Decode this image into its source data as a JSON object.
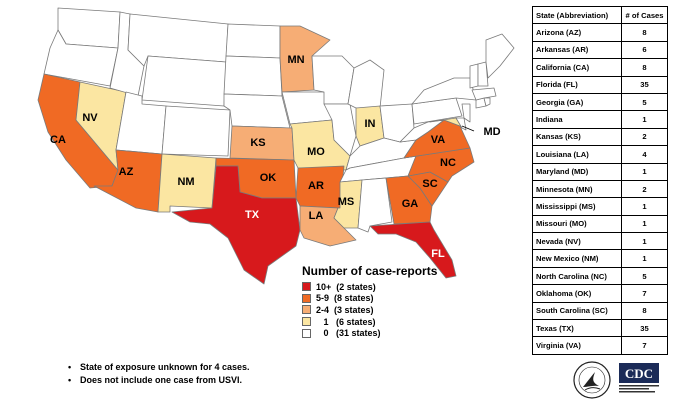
{
  "colors": {
    "cat_10_plus": "#d7191c",
    "cat_5_9": "#f06a24",
    "cat_2_4": "#f6ad75",
    "cat_1": "#fbe6a2",
    "cat_0": "#ffffff",
    "stroke": "#7a7a7a"
  },
  "map": {
    "state_labels": {
      "CA": "CA",
      "NV": "NV",
      "AZ": "AZ",
      "NM": "NM",
      "TX": "TX",
      "OK": "OK",
      "KS": "KS",
      "MO": "MO",
      "AR": "AR",
      "LA": "LA",
      "MS": "MS",
      "MN": "MN",
      "IN": "IN",
      "VA": "VA",
      "NC": "NC",
      "SC": "SC",
      "GA": "GA",
      "FL": "FL",
      "MD": "MD"
    },
    "state_categories": {
      "CA": "cat_5_9",
      "NV": "cat_1",
      "AZ": "cat_5_9",
      "NM": "cat_1",
      "TX": "cat_10_plus",
      "OK": "cat_5_9",
      "KS": "cat_2_4",
      "MO": "cat_1",
      "AR": "cat_5_9",
      "LA": "cat_2_4",
      "MS": "cat_1",
      "MN": "cat_2_4",
      "IN": "cat_1",
      "VA": "cat_5_9",
      "NC": "cat_5_9",
      "SC": "cat_5_9",
      "GA": "cat_5_9",
      "FL": "cat_10_plus",
      "MD": "cat_1"
    }
  },
  "legend": {
    "title": "Number of case-reports",
    "items": [
      {
        "label": "10+  (2 states)",
        "category": "cat_10_plus"
      },
      {
        "label": "5-9  (8 states)",
        "category": "cat_5_9"
      },
      {
        "label": "2-4  (3 states)",
        "category": "cat_2_4"
      },
      {
        "label": "   1   (6 states)",
        "category": "cat_1"
      },
      {
        "label": "   0   (31 states)",
        "category": "cat_0"
      }
    ]
  },
  "table": {
    "header_state": "State (Abbreviation)",
    "header_cases": "# of Cases",
    "rows": [
      {
        "state": "Arizona (AZ)",
        "cases": "8"
      },
      {
        "state": "Arkansas (AR)",
        "cases": "6"
      },
      {
        "state": "California (CA)",
        "cases": "8"
      },
      {
        "state": "Florida (FL)",
        "cases": "35"
      },
      {
        "state": "Georgia (GA)",
        "cases": "5"
      },
      {
        "state": "Indiana",
        "cases": "1"
      },
      {
        "state": "Kansas (KS)",
        "cases": "2"
      },
      {
        "state": "Louisiana (LA)",
        "cases": "4"
      },
      {
        "state": "Maryland (MD)",
        "cases": "1"
      },
      {
        "state": "Minnesota (MN)",
        "cases": "2"
      },
      {
        "state": "Mississippi (MS)",
        "cases": "1"
      },
      {
        "state": "Missouri (MO)",
        "cases": "1"
      },
      {
        "state": "Nevada (NV)",
        "cases": "1"
      },
      {
        "state": "New Mexico (NM)",
        "cases": "1"
      },
      {
        "state": "North Carolina (NC)",
        "cases": "5"
      },
      {
        "state": "Oklahoma (OK)",
        "cases": "7"
      },
      {
        "state": "South Carolina (SC)",
        "cases": "8"
      },
      {
        "state": "Texas (TX)",
        "cases": "35"
      },
      {
        "state": "Virginia (VA)",
        "cases": "7"
      }
    ]
  },
  "notes": [
    "State of exposure unknown for 4 cases.",
    "Does not include one case from USVI."
  ],
  "logos": {
    "hhs_icon": "hhs-eagle-seal",
    "cdc_text": "CDC"
  }
}
